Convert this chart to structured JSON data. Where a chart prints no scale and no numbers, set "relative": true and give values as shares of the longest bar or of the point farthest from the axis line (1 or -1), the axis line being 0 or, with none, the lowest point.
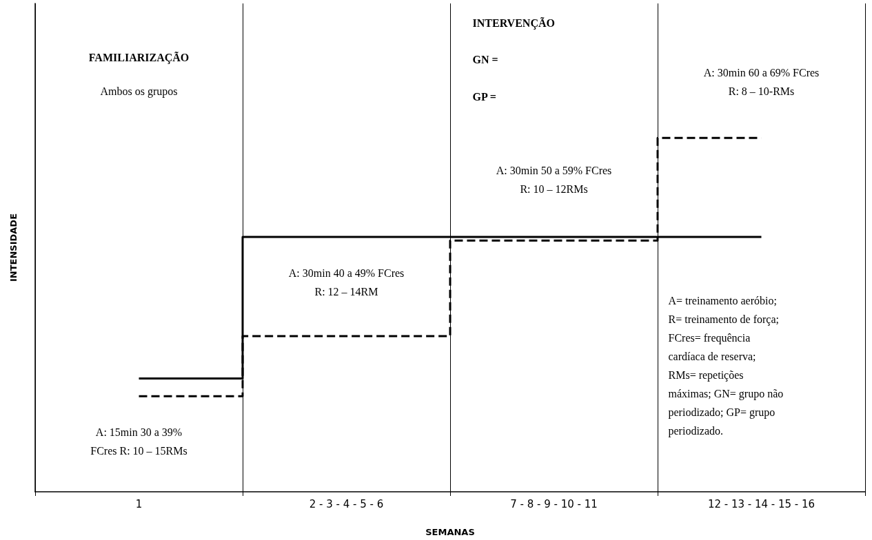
{
  "chart_data": {
    "type": "step",
    "relative": true,
    "xlabel": "SEMANAS",
    "ylabel": "INTENSIDADE",
    "categories": [
      "1",
      "2 - 3 - 4 - 5 - 6",
      "7 - 8 - 9 - 10 - 11",
      "12 - 13 - 14 - 15 - 16"
    ],
    "series": [
      {
        "color": "#000000",
        "line_style": "solid",
        "values": [
          0.32,
          0.72,
          0.72,
          0.72
        ]
      },
      {
        "color": "#000000",
        "line_style": "dashed",
        "values": [
          0.27,
          0.44,
          0.71,
          1.0
        ]
      }
    ],
    "grid": "x",
    "marker": "none",
    "annotations": [
      "FAMILIARIZAÇÃO",
      "Ambos os grupos",
      "A: 15min 30 a 39%\nFCres R: 10 – 15RMs",
      "A: 30min 40 a 49% FCres\nR: 12 – 14RM",
      "INTERVENÇÃO",
      "GN =",
      "GP =",
      "A: 30min 50 a 59% FCres\nR: 10 – 12RMs",
      "A: 30min 60 a 69% FCres\nR: 8 – 10-RMs",
      "A= treinamento aeróbio;\nR= treinamento de força;\nFCres= frequência\ncardíaca de reserva;\nRMs= repetições\nmáximas; GN= grupo não\nperiodizado; GP= grupo\nperiodizado."
    ]
  }
}
